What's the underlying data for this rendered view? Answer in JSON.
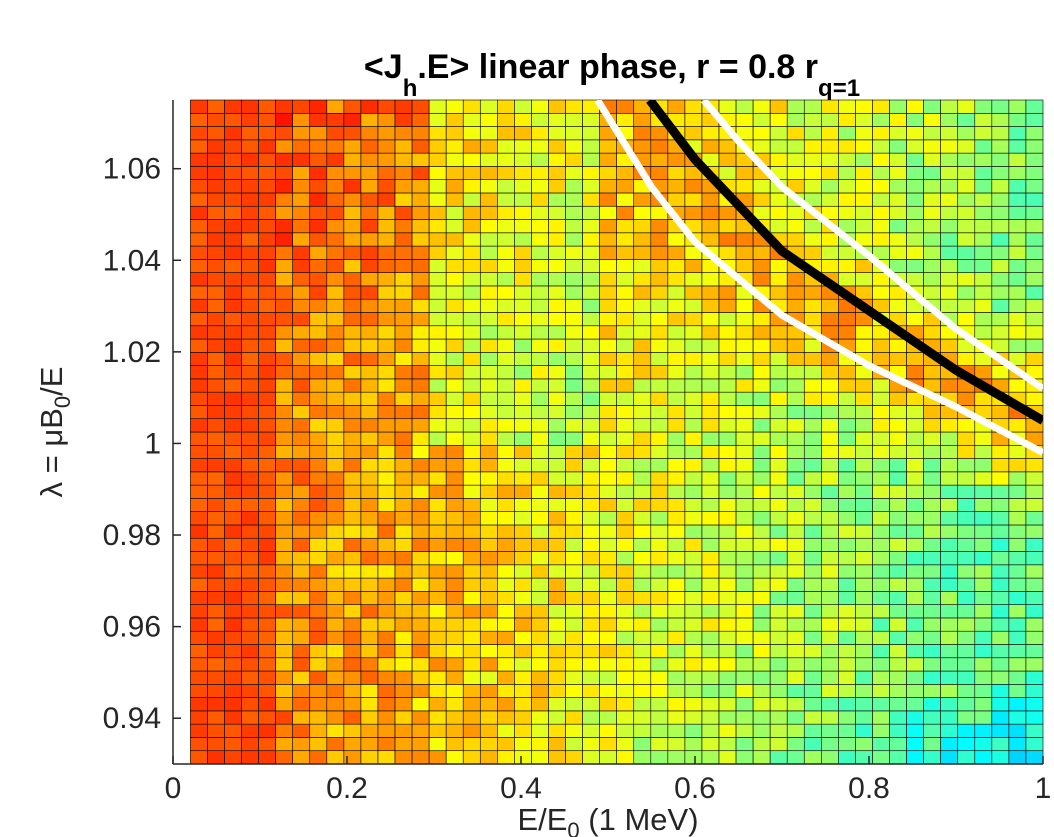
{
  "chart_data": {
    "type": "heatmap",
    "title": {
      "lead": "<J",
      "sub1": "h",
      "middle": ".E> linear phase, r = 0.8 r",
      "sub2": "q=1"
    },
    "xlabel": {
      "lead": "E/E",
      "sub": "0",
      "tail": " (1 MeV)"
    },
    "ylabel": {
      "lead": "λ = μB",
      "sub": "0",
      "tail": "/E"
    },
    "xlim": [
      0,
      1
    ],
    "ylim": [
      0.93,
      1.075
    ],
    "x_ticks": [
      "0",
      "0.2",
      "0.4",
      "0.6",
      "0.8",
      "1"
    ],
    "x_tick_values": [
      0,
      0.2,
      0.4,
      0.6,
      0.8,
      1
    ],
    "y_ticks": [
      "0.94",
      "0.96",
      "0.98",
      "1",
      "1.02",
      "1.04",
      "1.06"
    ],
    "y_tick_values": [
      0.94,
      0.96,
      0.98,
      1.0,
      1.02,
      1.04,
      1.06
    ],
    "grid": {
      "nx": 50,
      "ny": 50,
      "x_range": [
        0.02,
        1.0
      ],
      "y_range": [
        0.93,
        1.075
      ]
    },
    "colormap": "jet",
    "color_range": [
      0,
      1
    ],
    "curves": [
      {
        "color": "#ffffff",
        "points": [
          [
            0.488,
            1.075
          ],
          [
            0.55,
            1.056
          ],
          [
            0.6,
            1.044
          ],
          [
            0.7,
            1.028
          ],
          [
            0.8,
            1.017
          ],
          [
            0.9,
            1.008
          ],
          [
            1.0,
            0.998
          ]
        ]
      },
      {
        "color": "#000000",
        "points": [
          [
            0.548,
            1.075
          ],
          [
            0.6,
            1.062
          ],
          [
            0.7,
            1.042
          ],
          [
            0.8,
            1.029
          ],
          [
            0.9,
            1.016
          ],
          [
            1.0,
            1.005
          ]
        ]
      },
      {
        "color": "#ffffff",
        "points": [
          [
            0.61,
            1.075
          ],
          [
            0.65,
            1.066
          ],
          [
            0.7,
            1.056
          ],
          [
            0.8,
            1.041
          ],
          [
            0.9,
            1.025
          ],
          [
            1.0,
            1.012
          ]
        ]
      }
    ]
  }
}
